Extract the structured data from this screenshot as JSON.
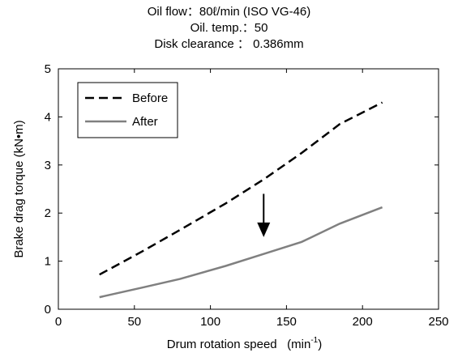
{
  "title_lines": [
    "Oil flow：80ℓ/min (ISO VG-46)",
    "Oil. temp.：50",
    "Disk clearance ： 0.386mm"
  ],
  "chart_data": {
    "type": "line",
    "xlabel": "Drum rotation speed   (min",
    "xlabel_sup": "-1",
    "xlabel_close": ")",
    "ylabel": "Brake drag torque (kN•m)",
    "xlim": [
      0,
      250
    ],
    "ylim": [
      0,
      5
    ],
    "xticks": [
      0,
      50,
      100,
      150,
      200,
      250
    ],
    "yticks": [
      0,
      1,
      2,
      3,
      4,
      5
    ],
    "grid": false,
    "legend_position": "top-left",
    "series": [
      {
        "name": "Before",
        "style": "dashed",
        "color": "#000000",
        "x": [
          27,
          55,
          80,
          110,
          135,
          160,
          185,
          213
        ],
        "y": [
          0.72,
          1.2,
          1.65,
          2.2,
          2.7,
          3.25,
          3.85,
          4.3
        ]
      },
      {
        "name": "After",
        "style": "solid",
        "color": "#808080",
        "x": [
          27,
          55,
          80,
          110,
          135,
          160,
          185,
          213
        ],
        "y": [
          0.25,
          0.45,
          0.63,
          0.9,
          1.15,
          1.4,
          1.78,
          2.12
        ]
      }
    ],
    "annotation": {
      "type": "arrow",
      "x": 135,
      "y_from": 2.4,
      "y_to": 1.5
    }
  }
}
